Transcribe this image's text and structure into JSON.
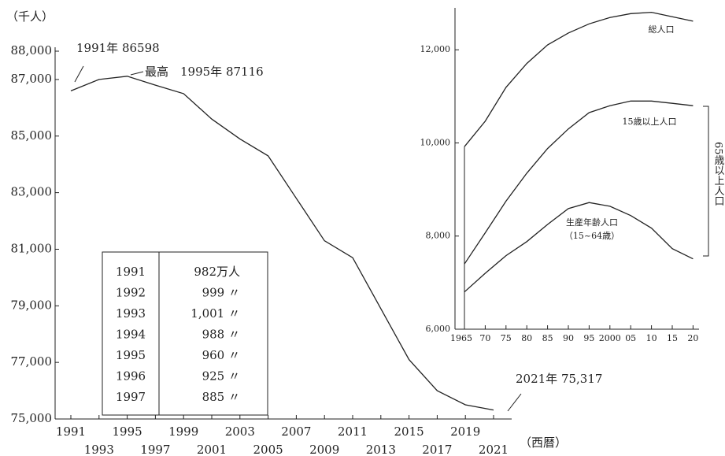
{
  "chart_data": [
    {
      "type": "line",
      "y_unit": "（千人）",
      "x_unit": "（西暦）",
      "annotations": [
        "1991年 86598",
        "最高　1995年 87116",
        "2021年 75,317"
      ],
      "x": [
        1991,
        1993,
        1995,
        1997,
        1999,
        2001,
        2003,
        2005,
        2007,
        2009,
        2011,
        2013,
        2015,
        2017,
        2019,
        2021
      ],
      "values": [
        86598,
        87000,
        87116,
        86800,
        86500,
        85600,
        84900,
        84300,
        82800,
        81300,
        80700,
        78900,
        77100,
        76000,
        75500,
        75317
      ],
      "color": "#222222",
      "xlim": [
        1991,
        2021
      ],
      "xticks": [
        1991,
        1993,
        1995,
        1997,
        1999,
        2001,
        2003,
        2005,
        2007,
        2009,
        2011,
        2013,
        2015,
        2017,
        2019,
        2021
      ],
      "ylim": [
        75000,
        88000
      ],
      "yticks": [
        {
          "value": 75000,
          "label": "75,000"
        },
        {
          "value": 77000,
          "label": "77,000"
        },
        {
          "value": 79000,
          "label": "79,000"
        },
        {
          "value": 81000,
          "label": "81,000"
        },
        {
          "value": 83000,
          "label": "83,000"
        },
        {
          "value": 85000,
          "label": "85,000"
        },
        {
          "value": 87000,
          "label": "87,000"
        },
        {
          "value": 88000,
          "label": "88,000"
        }
      ]
    },
    {
      "type": "line",
      "categories": [
        "1965",
        "70",
        "75",
        "80",
        "85",
        "90",
        "95",
        "2000",
        "05",
        "10",
        "15",
        "20"
      ],
      "series": [
        {
          "name": "総人口",
          "color": "#222222",
          "values": [
            9920,
            10467,
            11194,
            11706,
            12105,
            12361,
            12557,
            12693,
            12777,
            12806,
            12709,
            12615
          ]
        },
        {
          "name": "15歳以上人口",
          "color": "#222222",
          "values": [
            7400,
            8070,
            8750,
            9350,
            9880,
            10300,
            10650,
            10800,
            10900,
            10900,
            10850,
            10800
          ]
        },
        {
          "name": "生産年齢人口",
          "color": "#222222",
          "values": [
            6800,
            7200,
            7580,
            7880,
            8250,
            8590,
            8720,
            8640,
            8440,
            8170,
            7730,
            7510
          ]
        }
      ],
      "annotations": [
        "（15~64歳）",
        "65歳以上人口"
      ],
      "ylim": [
        6000,
        12900
      ],
      "yticks": [
        {
          "value": 6000,
          "label": "6,000"
        },
        {
          "value": 8000,
          "label": "8,000"
        },
        {
          "value": 10000,
          "label": "10,000"
        },
        {
          "value": 12000,
          "label": "12,000"
        }
      ]
    }
  ],
  "inset_table": {
    "rows": [
      [
        "1991",
        "982万人"
      ],
      [
        "1992",
        "999 〃"
      ],
      [
        "1993",
        "1,001 〃"
      ],
      [
        "1994",
        "988 〃"
      ],
      [
        "1995",
        "960 〃"
      ],
      [
        "1996",
        "925 〃"
      ],
      [
        "1997",
        "885 〃"
      ]
    ]
  }
}
